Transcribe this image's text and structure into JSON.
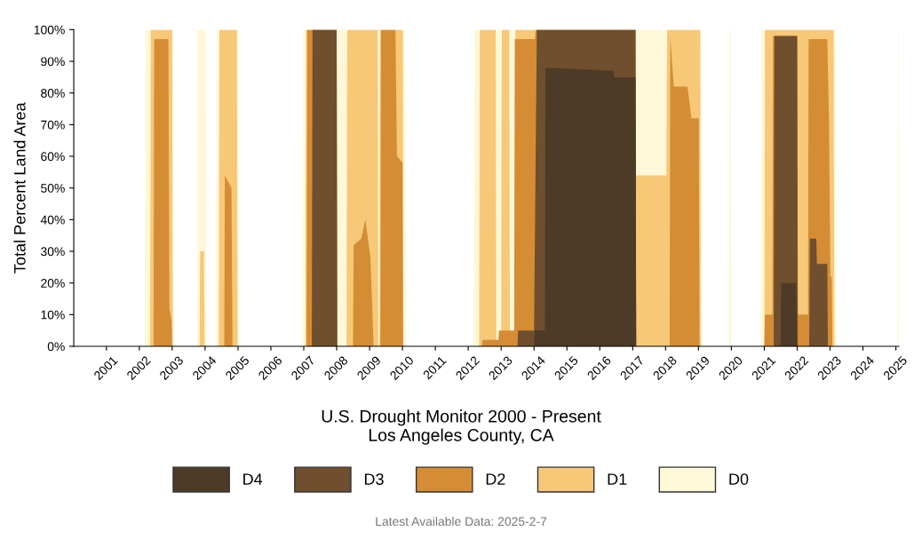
{
  "chart_data": {
    "type": "area",
    "title": "U.S. Drought Monitor 2000 - Present",
    "subtitle": "Los Angeles County, CA",
    "ylabel": "Total Percent Land Area",
    "annotations": [
      "Latest Available Data: 2025-2-7"
    ],
    "xlim": [
      "2000-01-04",
      "2025-02-04"
    ],
    "xticks": [
      {
        "value": "2001-01-01",
        "label": "2001"
      },
      {
        "value": "2002-01-01",
        "label": "2002"
      },
      {
        "value": "2003-01-01",
        "label": "2003"
      },
      {
        "value": "2004-01-01",
        "label": "2004"
      },
      {
        "value": "2005-01-01",
        "label": "2005"
      },
      {
        "value": "2006-01-01",
        "label": "2006"
      },
      {
        "value": "2007-01-01",
        "label": "2007"
      },
      {
        "value": "2008-01-01",
        "label": "2008"
      },
      {
        "value": "2009-01-01",
        "label": "2009"
      },
      {
        "value": "2010-01-01",
        "label": "2010"
      },
      {
        "value": "2011-01-01",
        "label": "2011"
      },
      {
        "value": "2012-01-01",
        "label": "2012"
      },
      {
        "value": "2013-01-01",
        "label": "2013"
      },
      {
        "value": "2014-01-01",
        "label": "2014"
      },
      {
        "value": "2015-01-01",
        "label": "2015"
      },
      {
        "value": "2016-01-01",
        "label": "2016"
      },
      {
        "value": "2017-01-01",
        "label": "2017"
      },
      {
        "value": "2018-01-01",
        "label": "2018"
      },
      {
        "value": "2019-01-01",
        "label": "2019"
      },
      {
        "value": "2020-01-01",
        "label": "2020"
      },
      {
        "value": "2021-01-01",
        "label": "2021"
      },
      {
        "value": "2022-01-01",
        "label": "2022"
      },
      {
        "value": "2023-01-01",
        "label": "2023"
      },
      {
        "value": "2024-01-01",
        "label": "2024"
      },
      {
        "value": "2025-01-01",
        "label": "2025"
      }
    ],
    "ylim": [
      0,
      100
    ],
    "yticks": [
      {
        "value": 0,
        "label": "0%"
      },
      {
        "value": 10,
        "label": "10%"
      },
      {
        "value": 20,
        "label": "20%"
      },
      {
        "value": 30,
        "label": "30%"
      },
      {
        "value": 40,
        "label": "40%"
      },
      {
        "value": 50,
        "label": "50%"
      },
      {
        "value": 60,
        "label": "60%"
      },
      {
        "value": 70,
        "label": "70%"
      },
      {
        "value": 80,
        "label": "80%"
      },
      {
        "value": 90,
        "label": "90%"
      },
      {
        "value": 100,
        "label": "100%"
      }
    ],
    "grid": false,
    "legend": "bottom",
    "series": [
      {
        "name": "D4",
        "color": "#4d3a27",
        "x": [
          "2014-01-01",
          "2014-01-08",
          "2014-05-01",
          "2014-05-08",
          "2016-06-01",
          "2016-06-08",
          "2017-02-01",
          "2017-02-08",
          "2021-07-01",
          "2021-07-08",
          "2021-12-20",
          "2022-01-01"
        ],
        "values": [
          0,
          5,
          5,
          88,
          87,
          85,
          85,
          0,
          0,
          20,
          20,
          0
        ]
      },
      {
        "name": "D3",
        "color": "#6f4f2d",
        "x": [
          "2007-04-01",
          "2007-04-08",
          "2008-01-01",
          "2008-01-08",
          "2013-07-01",
          "2013-07-08",
          "2014-01-01",
          "2014-02-01",
          "2017-02-01",
          "2017-02-08",
          "2021-04-15",
          "2021-04-22",
          "2022-01-01",
          "2022-01-08",
          "2022-05-15",
          "2022-05-22",
          "2022-08-01",
          "2022-08-08",
          "2022-12-01",
          "2022-12-08"
        ],
        "values": [
          0,
          100,
          100,
          0,
          0,
          5,
          5,
          100,
          100,
          0,
          0,
          98,
          98,
          0,
          0,
          34,
          34,
          26,
          26,
          0
        ]
      },
      {
        "name": "D2",
        "color": "#d48d35",
        "x": [
          "2002-06-08",
          "2002-06-15",
          "2002-11-20",
          "2002-12-01",
          "2002-12-25",
          "2003-01-01",
          "2004-08-01",
          "2004-08-08",
          "2004-10-20",
          "2004-11-01",
          "2007-02-01",
          "2007-02-08",
          "2008-01-01",
          "2008-01-08",
          "2008-07-01",
          "2008-07-08",
          "2008-10-01",
          "2008-11-15",
          "2009-01-10",
          "2009-02-15",
          "2009-05-01",
          "2009-05-08",
          "2009-10-15",
          "2009-11-01",
          "2010-01-01",
          "2010-01-08",
          "2012-06-01",
          "2012-06-08",
          "2012-12-01",
          "2012-12-08",
          "2013-05-25",
          "2013-06-01",
          "2014-01-10",
          "2014-01-20",
          "2017-02-01",
          "2017-02-08",
          "2018-02-15",
          "2018-02-22",
          "2018-04-01",
          "2018-09-01",
          "2018-10-15",
          "2019-01-05",
          "2019-01-12",
          "2021-01-01",
          "2021-01-08",
          "2021-04-01",
          "2021-04-08",
          "2022-01-01",
          "2022-01-08",
          "2022-05-01",
          "2022-05-08",
          "2022-12-01",
          "2022-12-20",
          "2023-01-05",
          "2023-01-20",
          "2023-01-27"
        ],
        "values": [
          0,
          97,
          97,
          12,
          8,
          0,
          0,
          54,
          50,
          0,
          0,
          100,
          100,
          0,
          0,
          32,
          34,
          40,
          28,
          0,
          0,
          100,
          100,
          60,
          58,
          0,
          0,
          2,
          2,
          5,
          5,
          97,
          97,
          100,
          100,
          0,
          0,
          98,
          82,
          82,
          72,
          72,
          0,
          0,
          10,
          10,
          98,
          98,
          10,
          10,
          97,
          97,
          72,
          22,
          22,
          0
        ]
      },
      {
        "name": "D1",
        "color": "#f6c878",
        "x": [
          "2002-05-01",
          "2002-05-08",
          "2003-01-01",
          "2003-01-08",
          "2003-11-01",
          "2003-11-08",
          "2003-12-20",
          "2003-12-27",
          "2004-06-01",
          "2004-06-08",
          "2004-12-20",
          "2004-12-27",
          "2007-01-20",
          "2007-01-27",
          "2008-01-01",
          "2008-01-08",
          "2008-04-20",
          "2008-04-27",
          "2009-04-01",
          "2009-04-08",
          "2009-04-20",
          "2009-04-27",
          "2010-01-05",
          "2010-01-12",
          "2012-05-01",
          "2012-05-08",
          "2012-11-01",
          "2012-11-08",
          "2013-01-01",
          "2013-01-08",
          "2013-04-01",
          "2013-04-08",
          "2013-06-01",
          "2013-06-08",
          "2017-02-01",
          "2017-02-08",
          "2018-01-10",
          "2018-01-17",
          "2019-01-20",
          "2019-01-27",
          "2021-01-01",
          "2021-01-08",
          "2023-02-10",
          "2023-02-17"
        ],
        "values": [
          0,
          100,
          100,
          0,
          0,
          30,
          30,
          0,
          0,
          100,
          100,
          0,
          0,
          100,
          100,
          0,
          0,
          100,
          100,
          0,
          0,
          100,
          100,
          0,
          0,
          100,
          100,
          0,
          0,
          100,
          100,
          0,
          0,
          100,
          100,
          54,
          54,
          100,
          100,
          0,
          0,
          100,
          100,
          0
        ]
      },
      {
        "name": "D0",
        "color": "#fff8d8",
        "x": [
          "2002-03-01",
          "2002-03-08",
          "2003-01-10",
          "2003-01-17",
          "2003-10-01",
          "2003-10-08",
          "2004-01-10",
          "2004-01-17",
          "2004-05-01",
          "2004-05-08",
          "2005-01-05",
          "2005-01-12",
          "2006-12-20",
          "2006-12-27",
          "2010-02-01",
          "2010-02-08",
          "2012-03-01",
          "2012-03-08",
          "2019-02-01",
          "2019-02-08",
          "2019-12-01",
          "2019-12-08",
          "2019-12-22",
          "2019-12-29",
          "2020-11-20",
          "2020-11-27",
          "2023-03-01",
          "2023-03-08",
          "2025-01-21",
          "2025-01-28",
          "2025-02-04"
        ],
        "values": [
          0,
          100,
          100,
          0,
          0,
          100,
          100,
          0,
          0,
          100,
          100,
          0,
          0,
          100,
          100,
          0,
          0,
          100,
          100,
          0,
          0,
          100,
          100,
          0,
          0,
          100,
          100,
          0,
          0,
          100,
          100
        ]
      }
    ]
  }
}
